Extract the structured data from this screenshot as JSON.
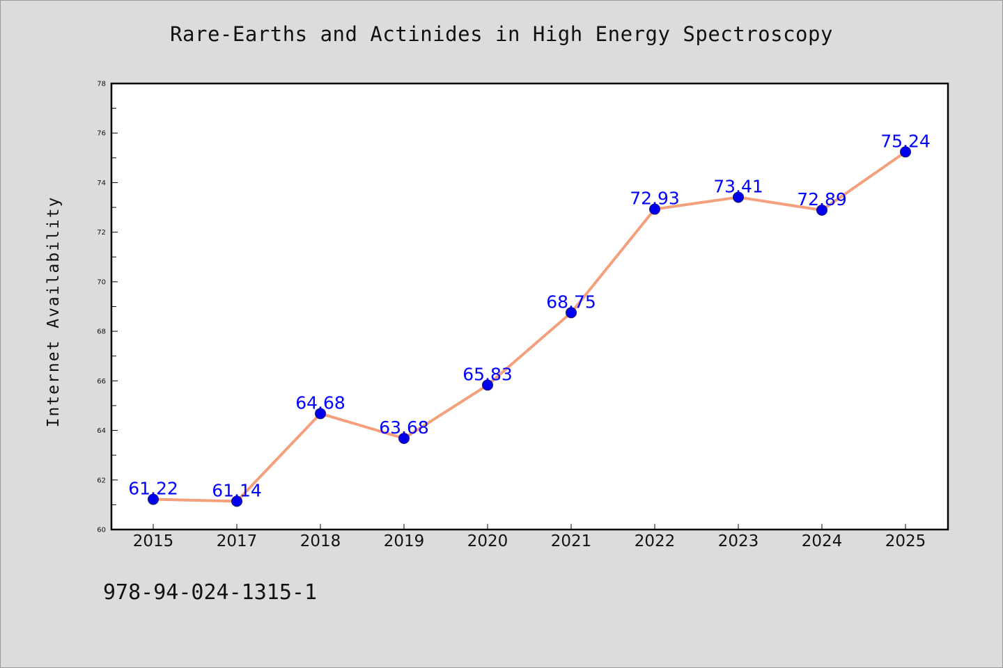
{
  "title": "Rare-Earths and Actinides in High Energy Spectroscopy",
  "footer_id": "978-94-024-1315-1",
  "colors": {
    "background": "#dcdcdc",
    "plot_background": "#ffffff",
    "line": "#f4a07c",
    "marker": "#0000ee",
    "data_label": "#0000ff"
  },
  "chart_data": {
    "type": "line",
    "title": "Rare-Earths and Actinides in High Energy Spectroscopy",
    "xlabel": "",
    "ylabel": "Internet Availability",
    "categories": [
      "2015",
      "2017",
      "2018",
      "2019",
      "2020",
      "2021",
      "2022",
      "2023",
      "2024",
      "2025"
    ],
    "values": [
      61.22,
      61.14,
      64.68,
      63.68,
      65.83,
      68.75,
      72.93,
      73.41,
      72.89,
      75.24
    ],
    "data_labels": [
      "61.22",
      "61.14",
      "64.68",
      "63.68",
      "65.83",
      "68.75",
      "72.93",
      "73.41",
      "72.89",
      "75.24"
    ],
    "ylim": [
      60,
      78
    ],
    "yticks": [
      "60",
      "62",
      "64",
      "66",
      "68",
      "70",
      "72",
      "74",
      "76",
      "78"
    ],
    "grid": false,
    "legend": "none"
  }
}
